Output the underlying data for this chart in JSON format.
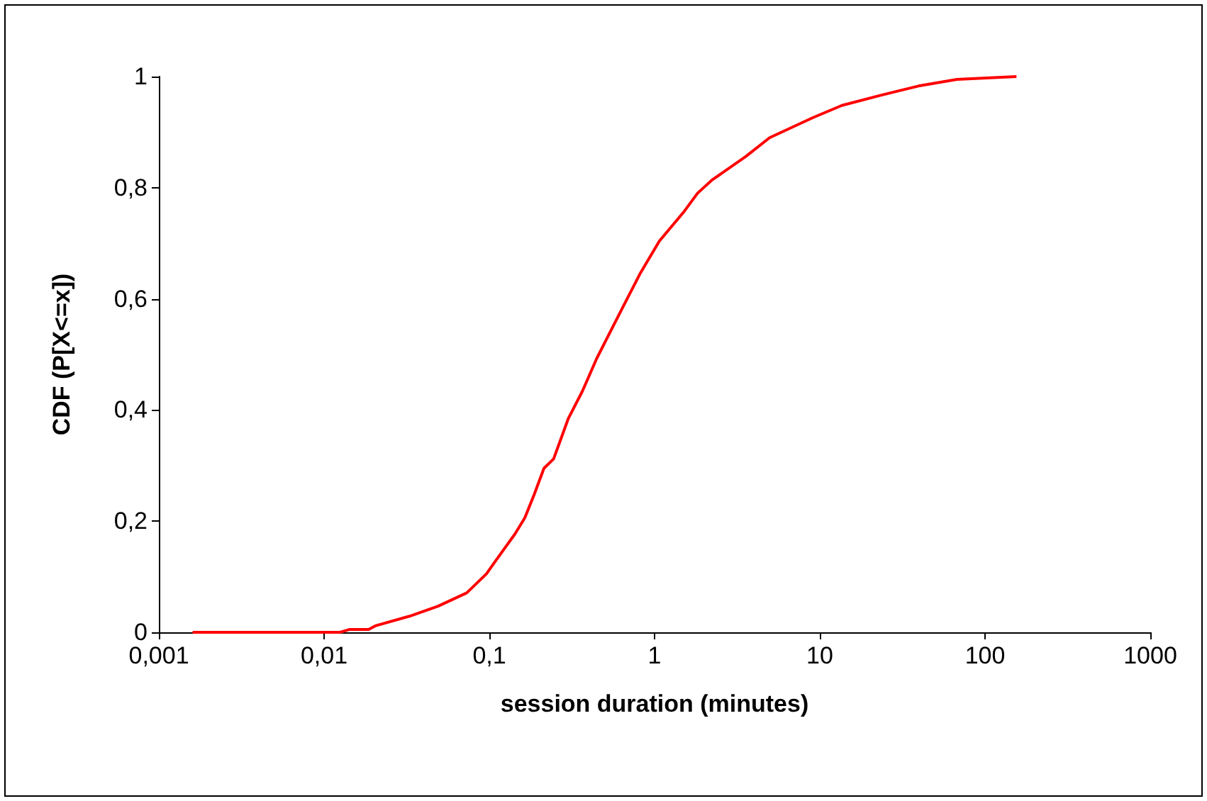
{
  "chart_data": {
    "type": "line",
    "xlabel": "session duration (minutes)",
    "ylabel": "CDF (P[X<=x])",
    "log": "x",
    "grid": false,
    "marker": "none",
    "line_style": "solid",
    "xlim": [
      0.001,
      1000
    ],
    "xticks": [
      {
        "value": 0.001,
        "label": "0,001"
      },
      {
        "value": 0.01,
        "label": "0,01"
      },
      {
        "value": 0.1,
        "label": "0,1"
      },
      {
        "value": 1,
        "label": "1"
      },
      {
        "value": 10,
        "label": "10"
      },
      {
        "value": 100,
        "label": "100"
      },
      {
        "value": 1000,
        "label": "1000"
      }
    ],
    "ylim": [
      0,
      1
    ],
    "yticks": [
      {
        "value": 0,
        "label": "0"
      },
      {
        "value": 0.2,
        "label": "0,2"
      },
      {
        "value": 0.4,
        "label": "0,4"
      },
      {
        "value": 0.6,
        "label": "0,6"
      },
      {
        "value": 0.8,
        "label": "0,8"
      },
      {
        "value": 1,
        "label": "1"
      }
    ],
    "series": [
      {
        "color": "#ff0000",
        "x": [
          0.0016,
          0.0125,
          0.0142,
          0.0186,
          0.0206,
          0.0329,
          0.049,
          0.073,
          0.096,
          0.11,
          0.143,
          0.164,
          0.187,
          0.214,
          0.245,
          0.3,
          0.366,
          0.447,
          0.625,
          0.816,
          1.07,
          1.49,
          1.82,
          2.23,
          3.56,
          4.97,
          9.08,
          13.6,
          23.2,
          39.6,
          67.6,
          155
        ],
        "values": [
          0,
          0,
          0.005,
          0.005,
          0.012,
          0.029,
          0.047,
          0.071,
          0.105,
          0.13,
          0.177,
          0.206,
          0.248,
          0.295,
          0.312,
          0.384,
          0.434,
          0.493,
          0.578,
          0.645,
          0.704,
          0.755,
          0.79,
          0.814,
          0.856,
          0.89,
          0.926,
          0.948,
          0.966,
          0.983,
          0.995,
          1.0
        ]
      }
    ]
  }
}
